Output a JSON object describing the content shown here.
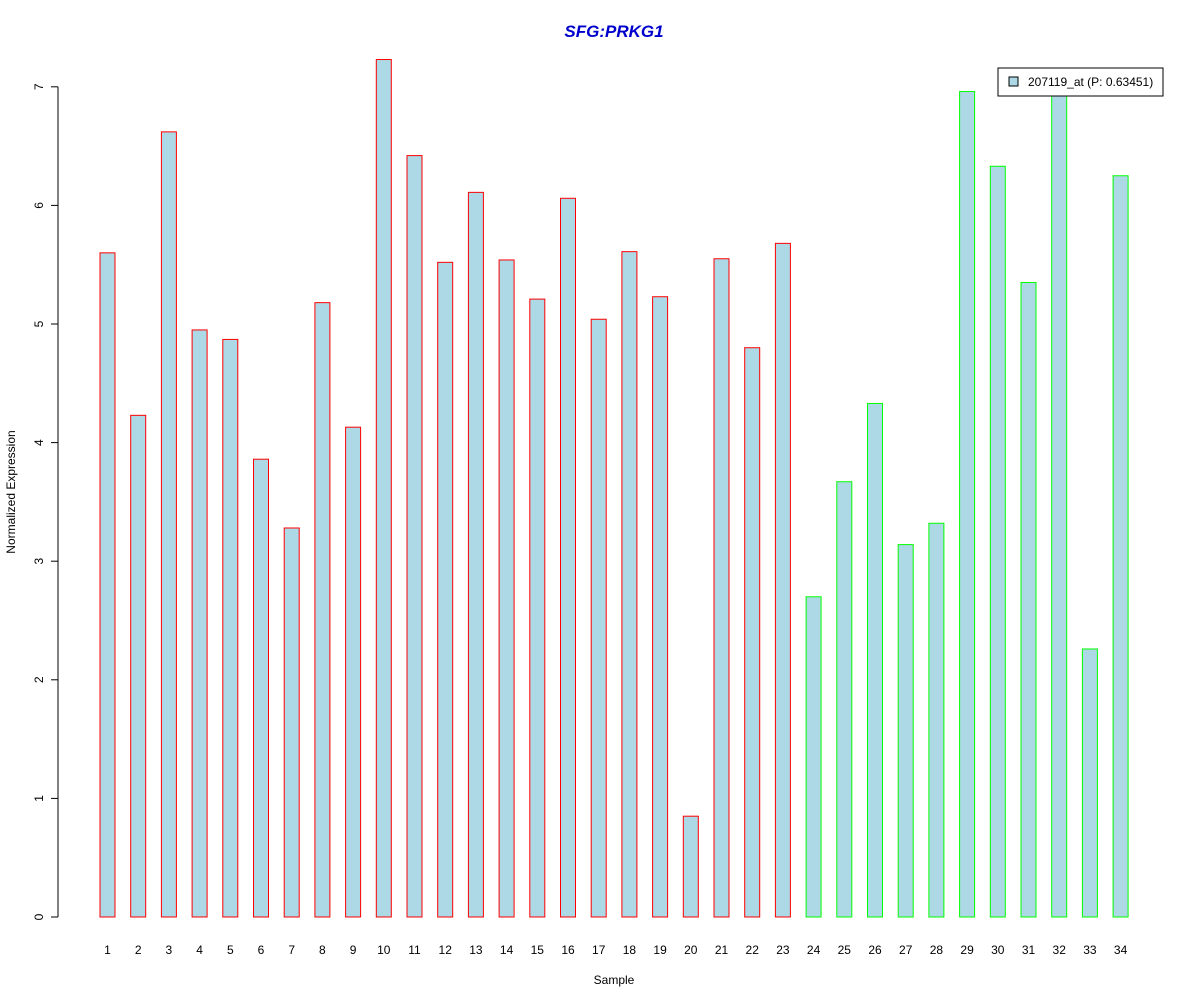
{
  "chart_data": {
    "type": "bar",
    "title": "SFG:PRKG1",
    "xlabel": "Sample",
    "ylabel": "Normalized Expression",
    "ylim": [
      0,
      7
    ],
    "yticks": [
      0,
      1,
      2,
      3,
      4,
      5,
      6,
      7
    ],
    "categories": [
      "1",
      "2",
      "3",
      "4",
      "5",
      "6",
      "7",
      "8",
      "9",
      "10",
      "11",
      "12",
      "13",
      "14",
      "15",
      "16",
      "17",
      "18",
      "19",
      "20",
      "21",
      "22",
      "23",
      "24",
      "25",
      "26",
      "27",
      "28",
      "29",
      "30",
      "31",
      "32",
      "33",
      "34"
    ],
    "series": [
      {
        "name": "207119_at (P: 0.63451)",
        "values": [
          5.6,
          4.23,
          6.62,
          4.95,
          4.87,
          3.86,
          3.28,
          5.18,
          4.13,
          7.23,
          6.42,
          5.52,
          6.11,
          5.54,
          5.21,
          6.06,
          5.04,
          5.61,
          5.23,
          0.85,
          5.55,
          4.8,
          5.68,
          2.7,
          3.67,
          4.33,
          3.14,
          3.32,
          6.96,
          6.33,
          5.35,
          6.96,
          2.26,
          6.25
        ],
        "fill": "#add8e6",
        "group_sizes": [
          23,
          11
        ],
        "group_border_colors": [
          "#ff0000",
          "#00ff00"
        ]
      }
    ],
    "title_color": "#0000cd",
    "legend_position": "top-right",
    "grid": false
  }
}
